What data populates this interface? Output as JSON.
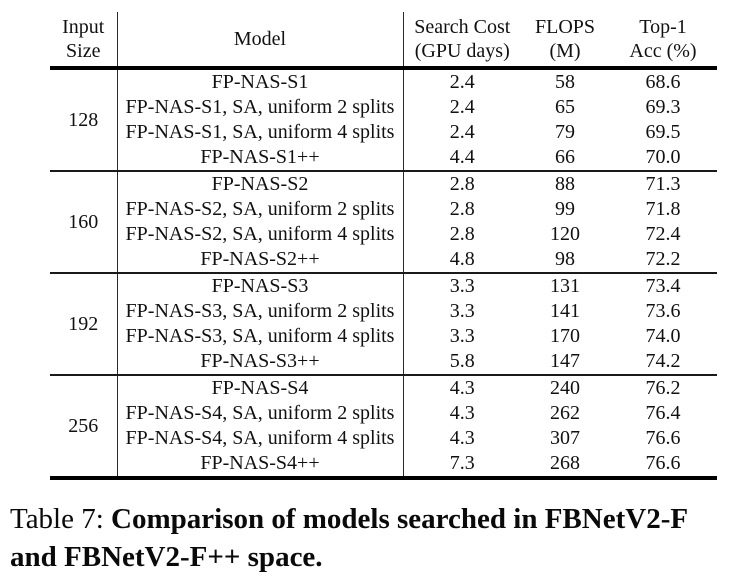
{
  "table": {
    "headers": [
      {
        "line1": "Input",
        "line2": "Size"
      },
      {
        "line1": "Model",
        "line2": ""
      },
      {
        "line1": "Search Cost",
        "line2": "(GPU days)"
      },
      {
        "line1": "FLOPS",
        "line2": "(M)"
      },
      {
        "line1": "Top-1",
        "line2": "Acc (%)"
      }
    ],
    "groups": [
      {
        "input_size": "128",
        "rows": [
          {
            "model": "FP-NAS-S1",
            "search_cost": "2.4",
            "flops": "58",
            "top1": "68.6"
          },
          {
            "model": "FP-NAS-S1, SA, uniform 2 splits",
            "search_cost": "2.4",
            "flops": "65",
            "top1": "69.3"
          },
          {
            "model": "FP-NAS-S1, SA, uniform 4 splits",
            "search_cost": "2.4",
            "flops": "79",
            "top1": "69.5"
          },
          {
            "model": "FP-NAS-S1++",
            "search_cost": "4.4",
            "flops": "66",
            "top1": "70.0"
          }
        ]
      },
      {
        "input_size": "160",
        "rows": [
          {
            "model": "FP-NAS-S2",
            "search_cost": "2.8",
            "flops": "88",
            "top1": "71.3"
          },
          {
            "model": "FP-NAS-S2, SA, uniform 2 splits",
            "search_cost": "2.8",
            "flops": "99",
            "top1": "71.8"
          },
          {
            "model": "FP-NAS-S2, SA, uniform 4 splits",
            "search_cost": "2.8",
            "flops": "120",
            "top1": "72.4"
          },
          {
            "model": "FP-NAS-S2++",
            "search_cost": "4.8",
            "flops": "98",
            "top1": "72.2"
          }
        ]
      },
      {
        "input_size": "192",
        "rows": [
          {
            "model": "FP-NAS-S3",
            "search_cost": "3.3",
            "flops": "131",
            "top1": "73.4"
          },
          {
            "model": "FP-NAS-S3, SA, uniform 2 splits",
            "search_cost": "3.3",
            "flops": "141",
            "top1": "73.6"
          },
          {
            "model": "FP-NAS-S3, SA, uniform 4 splits",
            "search_cost": "3.3",
            "flops": "170",
            "top1": "74.0"
          },
          {
            "model": "FP-NAS-S3++",
            "search_cost": "5.8",
            "flops": "147",
            "top1": "74.2"
          }
        ]
      },
      {
        "input_size": "256",
        "rows": [
          {
            "model": "FP-NAS-S4",
            "search_cost": "4.3",
            "flops": "240",
            "top1": "76.2"
          },
          {
            "model": "FP-NAS-S4, SA, uniform 2 splits",
            "search_cost": "4.3",
            "flops": "262",
            "top1": "76.4"
          },
          {
            "model": "FP-NAS-S4, SA, uniform 4 splits",
            "search_cost": "4.3",
            "flops": "307",
            "top1": "76.6"
          },
          {
            "model": "FP-NAS-S4++",
            "search_cost": "7.3",
            "flops": "268",
            "top1": "76.6"
          }
        ]
      }
    ]
  },
  "caption": {
    "label": "Table 7:",
    "bold_line1": "Comparison of models searched in FBNetV2-F",
    "bold_line2": "and FBNetV2-F++ space."
  }
}
